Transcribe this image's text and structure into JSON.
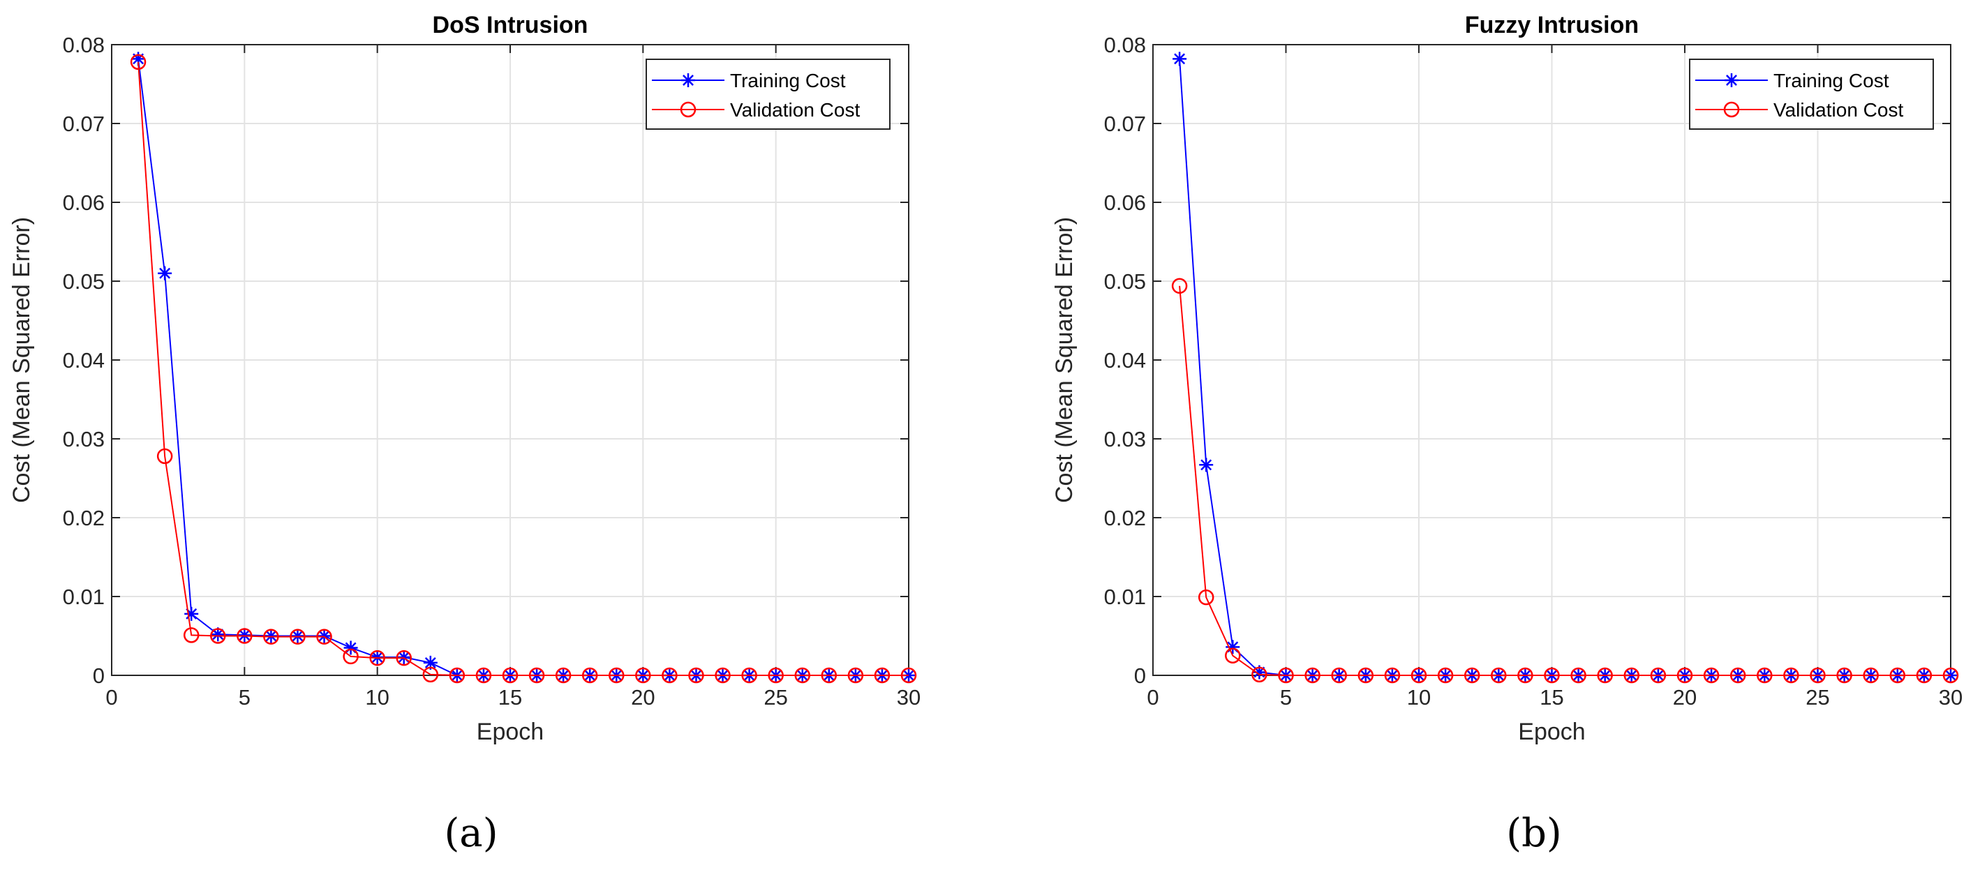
{
  "chart_data": [
    {
      "type": "line",
      "title": "DoS Intrusion",
      "xlabel": "Epoch",
      "ylabel": "Cost (Mean Squared Error)",
      "xlim": [
        0,
        30
      ],
      "ylim": [
        0,
        0.08
      ],
      "xticks": [
        "0",
        "5",
        "10",
        "15",
        "20",
        "25",
        "30"
      ],
      "yticks": [
        "0",
        "0.01",
        "0.02",
        "0.03",
        "0.04",
        "0.05",
        "0.06",
        "0.07",
        "0.08"
      ],
      "grid": true,
      "legend_position": "top-right",
      "panel_label": "(a)",
      "x": [
        1,
        2,
        3,
        4,
        5,
        6,
        7,
        8,
        9,
        10,
        11,
        12,
        13,
        14,
        15,
        16,
        17,
        18,
        19,
        20,
        21,
        22,
        23,
        24,
        25,
        26,
        27,
        28,
        29,
        30
      ],
      "series": [
        {
          "name": "Training Cost",
          "color": "#0000ff",
          "marker": "asterisk",
          "values": [
            0.0782,
            0.051,
            0.0078,
            0.0052,
            0.0051,
            0.005,
            0.005,
            0.005,
            0.0035,
            0.0023,
            0.0023,
            0.0016,
            0,
            0,
            0,
            0,
            0,
            0,
            0,
            0,
            0,
            0,
            0,
            0,
            0,
            0,
            0,
            0,
            0,
            0
          ]
        },
        {
          "name": "Validation Cost",
          "color": "#ff0000",
          "marker": "circle",
          "values": [
            0.0778,
            0.0278,
            0.0051,
            0.005,
            0.005,
            0.0049,
            0.0049,
            0.0049,
            0.0024,
            0.0022,
            0.0022,
            0.0001,
            0,
            0,
            0,
            0,
            0,
            0,
            0,
            0,
            0,
            0,
            0,
            0,
            0,
            0,
            0,
            0,
            0,
            0
          ]
        }
      ]
    },
    {
      "type": "line",
      "title": "Fuzzy Intrusion",
      "xlabel": "Epoch",
      "ylabel": "Cost (Mean Squared Error)",
      "xlim": [
        0,
        30
      ],
      "ylim": [
        0,
        0.08
      ],
      "xticks": [
        "0",
        "5",
        "10",
        "15",
        "20",
        "25",
        "30"
      ],
      "yticks": [
        "0",
        "0.01",
        "0.02",
        "0.03",
        "0.04",
        "0.05",
        "0.06",
        "0.07",
        "0.08"
      ],
      "grid": true,
      "legend_position": "top-right",
      "panel_label": "(b)",
      "x": [
        1,
        2,
        3,
        4,
        5,
        6,
        7,
        8,
        9,
        10,
        11,
        12,
        13,
        14,
        15,
        16,
        17,
        18,
        19,
        20,
        21,
        22,
        23,
        24,
        25,
        26,
        27,
        28,
        29,
        30
      ],
      "series": [
        {
          "name": "Training Cost",
          "color": "#0000ff",
          "marker": "asterisk",
          "values": [
            0.0782,
            0.0267,
            0.0036,
            0.0004,
            0,
            0,
            0,
            0,
            0,
            0,
            0,
            0,
            0,
            0,
            0,
            0,
            0,
            0,
            0,
            0,
            0,
            0,
            0,
            0,
            0,
            0,
            0,
            0,
            0,
            0
          ]
        },
        {
          "name": "Validation Cost",
          "color": "#ff0000",
          "marker": "circle",
          "values": [
            0.0494,
            0.0099,
            0.0025,
            0.0001,
            0,
            0,
            0,
            0,
            0,
            0,
            0,
            0,
            0,
            0,
            0,
            0,
            0,
            0,
            0,
            0,
            0,
            0,
            0,
            0,
            0,
            0,
            0,
            0,
            0,
            0
          ]
        }
      ]
    }
  ]
}
